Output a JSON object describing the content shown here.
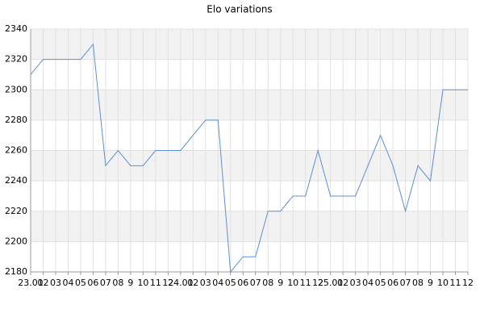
{
  "chart_data": {
    "type": "line",
    "title": "Elo variations",
    "categories": [
      "23.01",
      "02",
      "03",
      "04",
      "05",
      "06",
      "07",
      "08",
      "9",
      "10",
      "11",
      "12",
      "24.01",
      "02",
      "03",
      "04",
      "05",
      "06",
      "07",
      "08",
      "9",
      "10",
      "11",
      "12",
      "25.01",
      "02",
      "03",
      "04",
      "05",
      "06",
      "07",
      "08",
      "9",
      "10",
      "11",
      "12"
    ],
    "values": [
      2310,
      2320,
      2320,
      2320,
      2320,
      2330,
      2250,
      2260,
      2250,
      2250,
      2260,
      2260,
      2260,
      2270,
      2280,
      2280,
      2180,
      2190,
      2190,
      2220,
      2220,
      2230,
      2230,
      2260,
      2230,
      2230,
      2230,
      2250,
      2270,
      2250,
      2220,
      2250,
      2240,
      2300,
      2300,
      2300
    ],
    "color": "#5b8fd6",
    "ylim": [
      2180,
      2340
    ],
    "yticks": [
      2180,
      2200,
      2220,
      2240,
      2260,
      2280,
      2300,
      2320,
      2340
    ],
    "grid": true,
    "band_color": "#f2f2f2"
  }
}
